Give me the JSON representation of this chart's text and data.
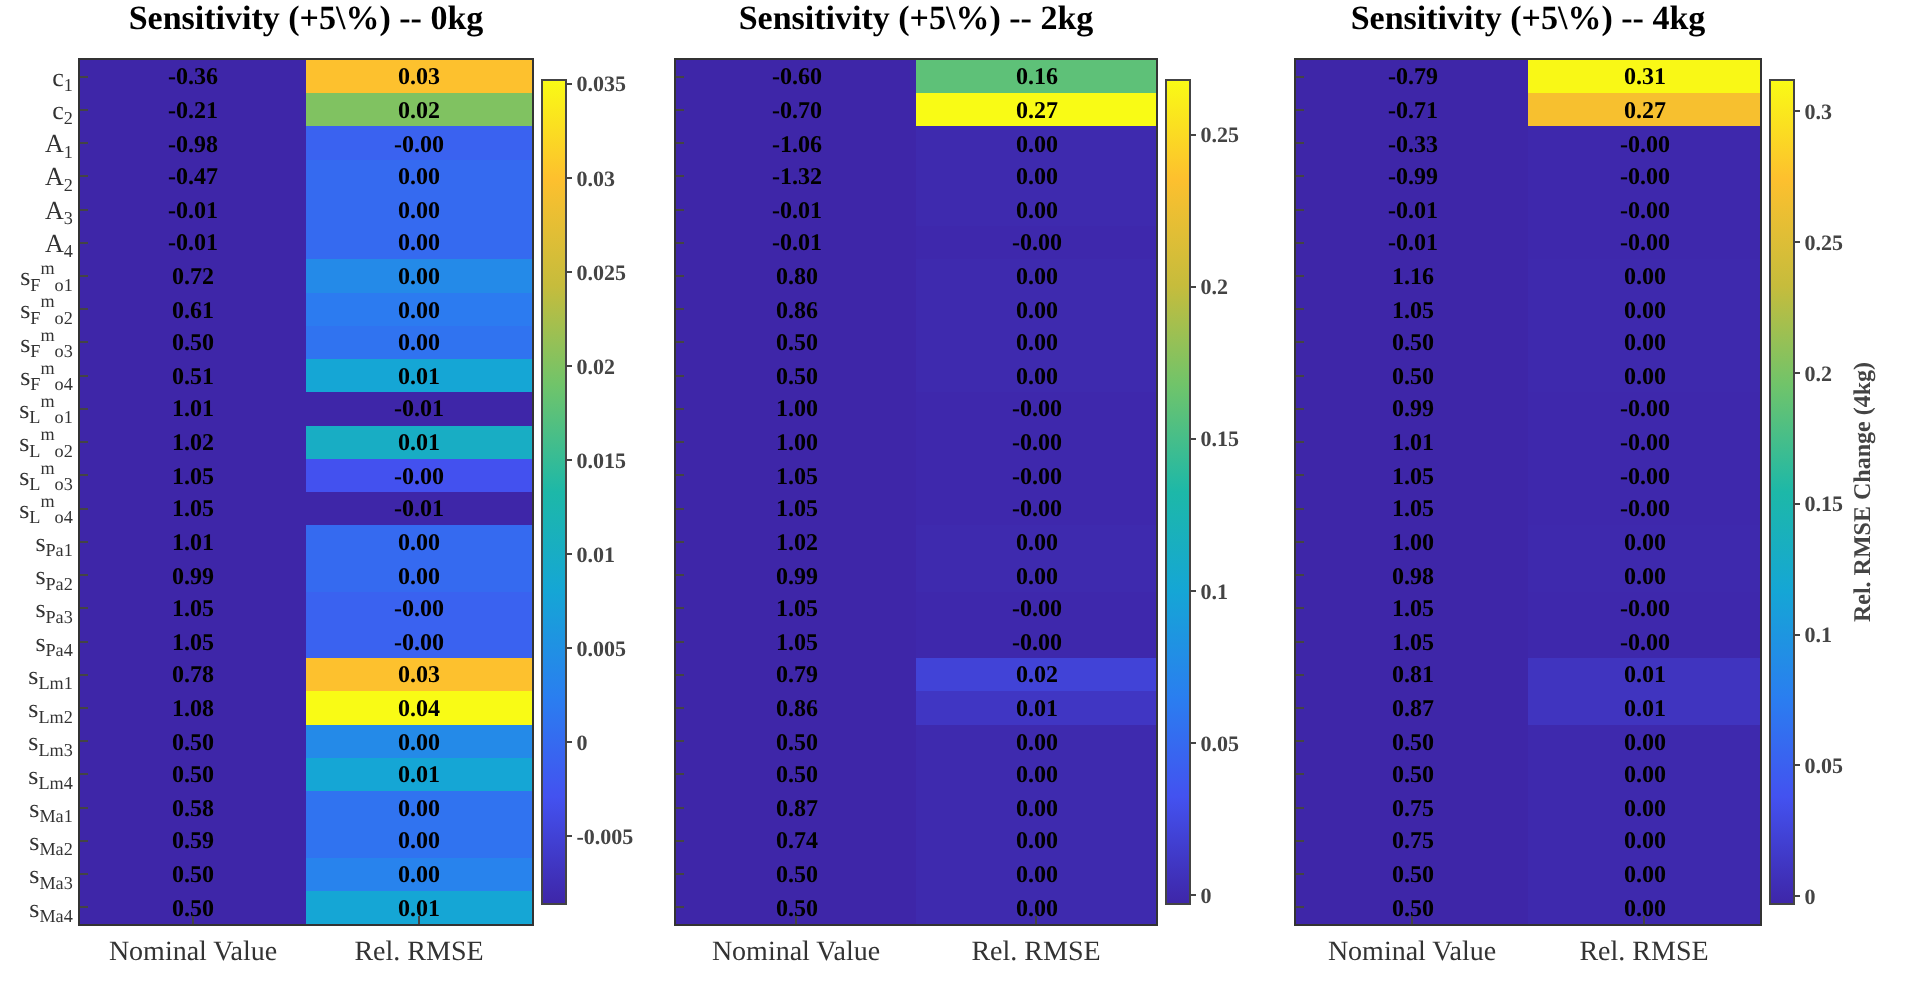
{
  "chart_data": [
    {
      "type": "heatmap",
      "title": "Sensitivity (+5\\%) -- 0kg",
      "categories": [
        "Nominal Value",
        "Rel. RMSE"
      ],
      "y_categories": [
        "c$_{1}$",
        "c$_{2}$",
        "A$_{1}$",
        "A$_{2}$",
        "A$_{3}$",
        "A$_{4}$",
        "s$_{F}$$^{m}$$_{o1}$",
        "s$_{F}$$^{m}$$_{o2}$",
        "s$_{F}$$^{m}$$_{o3}$",
        "s$_{F}$$^{m}$$_{o4}$",
        "s$_{L}$$^{m}$$_{o1}$",
        "s$_{L}$$^{m}$$_{o2}$",
        "s$_{L}$$^{m}$$_{o3}$",
        "s$_{L}$$^{m}$$_{o4}$",
        "s$_{Pa1}$",
        "s$_{Pa2}$",
        "s$_{Pa3}$",
        "s$_{Pa4}$",
        "s$_{Lm1}$",
        "s$_{Lm2}$",
        "s$_{Lm3}$",
        "s$_{Lm4}$",
        "s$_{Ma1}$",
        "s$_{Ma2}$",
        "s$_{Ma3}$",
        "s$_{Ma4}$"
      ],
      "cells": [
        [
          null,
          0.03
        ],
        [
          null,
          0.02
        ],
        [
          null,
          -0.001
        ],
        [
          null,
          0
        ],
        [
          null,
          0
        ],
        [
          null,
          0
        ],
        [
          null,
          0.004
        ],
        [
          null,
          0.002
        ],
        [
          null,
          0.001
        ],
        [
          null,
          0.008
        ],
        [
          null,
          -0.01
        ],
        [
          null,
          0.01
        ],
        [
          null,
          -0.003
        ],
        [
          null,
          -0.01
        ],
        [
          null,
          0.0
        ],
        [
          null,
          0.0
        ],
        [
          null,
          -0.001
        ],
        [
          null,
          -0.001
        ],
        [
          null,
          0.03
        ],
        [
          null,
          0.04
        ],
        [
          null,
          0.004
        ],
        [
          null,
          0.008
        ],
        [
          null,
          0.001
        ],
        [
          null,
          0.001
        ],
        [
          null,
          0.003
        ],
        [
          null,
          0.008
        ]
      ],
      "cell_labels": [
        [
          "-0.36",
          "0.03"
        ],
        [
          "-0.21",
          "0.02"
        ],
        [
          "-0.98",
          "-0.00"
        ],
        [
          "-0.47",
          "0.00"
        ],
        [
          "-0.01",
          "0.00"
        ],
        [
          "-0.01",
          "0.00"
        ],
        [
          "0.72",
          "0.00"
        ],
        [
          "0.61",
          "0.00"
        ],
        [
          "0.50",
          "0.00"
        ],
        [
          "0.51",
          "0.01"
        ],
        [
          "1.01",
          "-0.01"
        ],
        [
          "1.02",
          "0.01"
        ],
        [
          "1.05",
          "-0.00"
        ],
        [
          "1.05",
          "-0.01"
        ],
        [
          "1.01",
          "0.00"
        ],
        [
          "0.99",
          "0.00"
        ],
        [
          "1.05",
          "-0.00"
        ],
        [
          "1.05",
          "-0.00"
        ],
        [
          "0.78",
          "0.03"
        ],
        [
          "1.08",
          "0.04"
        ],
        [
          "0.50",
          "0.00"
        ],
        [
          "0.50",
          "0.01"
        ],
        [
          "0.58",
          "0.00"
        ],
        [
          "0.59",
          "0.00"
        ],
        [
          "0.50",
          "0.00"
        ],
        [
          "0.50",
          "0.01"
        ]
      ],
      "clim": [
        -0.0086,
        0.0352
      ],
      "cticks": [
        -0.005,
        0,
        0.005,
        0.01,
        0.015,
        0.02,
        0.025,
        0.03,
        0.035
      ]
    },
    {
      "type": "heatmap",
      "title": "Sensitivity (+5\\%) -- 2kg",
      "categories": [
        "Nominal Value",
        "Rel. RMSE"
      ],
      "y_categories": [
        null,
        null,
        null,
        null,
        null,
        null,
        null,
        null,
        null,
        null,
        null,
        null,
        null,
        null,
        null,
        null,
        null,
        null,
        null,
        null,
        null,
        null,
        null,
        null,
        null,
        null
      ],
      "cells": [
        [
          null,
          0.16
        ],
        [
          null,
          0.27
        ],
        [
          null,
          0
        ],
        [
          null,
          0
        ],
        [
          null,
          0
        ],
        [
          null,
          -0.001
        ],
        [
          null,
          0
        ],
        [
          null,
          0
        ],
        [
          null,
          0
        ],
        [
          null,
          0
        ],
        [
          null,
          -0.001
        ],
        [
          null,
          -0.001
        ],
        [
          null,
          -0.001
        ],
        [
          null,
          -0.001
        ],
        [
          null,
          0
        ],
        [
          null,
          0
        ],
        [
          null,
          -0.001
        ],
        [
          null,
          -0.001
        ],
        [
          null,
          0.02
        ],
        [
          null,
          0.01
        ],
        [
          null,
          0
        ],
        [
          null,
          0
        ],
        [
          null,
          0
        ],
        [
          null,
          0
        ],
        [
          null,
          0
        ],
        [
          null,
          0
        ]
      ],
      "cell_labels": [
        [
          "-0.60",
          "0.16"
        ],
        [
          "-0.70",
          "0.27"
        ],
        [
          "-1.06",
          "0.00"
        ],
        [
          "-1.32",
          "0.00"
        ],
        [
          "-0.01",
          "0.00"
        ],
        [
          "-0.01",
          "-0.00"
        ],
        [
          "0.80",
          "0.00"
        ],
        [
          "0.86",
          "0.00"
        ],
        [
          "0.50",
          "0.00"
        ],
        [
          "0.50",
          "0.00"
        ],
        [
          "1.00",
          "-0.00"
        ],
        [
          "1.00",
          "-0.00"
        ],
        [
          "1.05",
          "-0.00"
        ],
        [
          "1.05",
          "-0.00"
        ],
        [
          "1.02",
          "0.00"
        ],
        [
          "0.99",
          "0.00"
        ],
        [
          "1.05",
          "-0.00"
        ],
        [
          "1.05",
          "-0.00"
        ],
        [
          "0.79",
          "0.02"
        ],
        [
          "0.86",
          "0.01"
        ],
        [
          "0.50",
          "0.00"
        ],
        [
          "0.50",
          "0.00"
        ],
        [
          "0.87",
          "0.00"
        ],
        [
          "0.74",
          "0.00"
        ],
        [
          "0.50",
          "0.00"
        ],
        [
          "0.50",
          "0.00"
        ]
      ],
      "clim": [
        -0.003,
        0.268
      ],
      "cticks": [
        0,
        0.05,
        0.1,
        0.15,
        0.2,
        0.25
      ]
    },
    {
      "type": "heatmap",
      "title": "Sensitivity (+5\\%) -- 4kg",
      "categories": [
        "Nominal Value",
        "Rel. RMSE"
      ],
      "clabel": "Rel. RMSE Change (4kg)",
      "y_categories": [
        null,
        null,
        null,
        null,
        null,
        null,
        null,
        null,
        null,
        null,
        null,
        null,
        null,
        null,
        null,
        null,
        null,
        null,
        null,
        null,
        null,
        null,
        null,
        null,
        null,
        null
      ],
      "cells": [
        [
          null,
          0.31
        ],
        [
          null,
          0.27
        ],
        [
          null,
          -0.001
        ],
        [
          null,
          -0.001
        ],
        [
          null,
          -0.001
        ],
        [
          null,
          -0.001
        ],
        [
          null,
          0
        ],
        [
          null,
          0
        ],
        [
          null,
          0
        ],
        [
          null,
          0
        ],
        [
          null,
          -0.001
        ],
        [
          null,
          -0.001
        ],
        [
          null,
          -0.001
        ],
        [
          null,
          -0.001
        ],
        [
          null,
          0
        ],
        [
          null,
          0
        ],
        [
          null,
          -0.001
        ],
        [
          null,
          -0.001
        ],
        [
          null,
          0.01
        ],
        [
          null,
          0.01
        ],
        [
          null,
          0
        ],
        [
          null,
          0
        ],
        [
          null,
          0
        ],
        [
          null,
          0
        ],
        [
          null,
          0
        ],
        [
          null,
          0
        ]
      ],
      "cell_labels": [
        [
          "-0.79",
          "0.31"
        ],
        [
          "-0.71",
          "0.27"
        ],
        [
          "-0.33",
          "-0.00"
        ],
        [
          "-0.99",
          "-0.00"
        ],
        [
          "-0.01",
          "-0.00"
        ],
        [
          "-0.01",
          "-0.00"
        ],
        [
          "1.16",
          "0.00"
        ],
        [
          "1.05",
          "0.00"
        ],
        [
          "0.50",
          "0.00"
        ],
        [
          "0.50",
          "0.00"
        ],
        [
          "0.99",
          "-0.00"
        ],
        [
          "1.01",
          "-0.00"
        ],
        [
          "1.05",
          "-0.00"
        ],
        [
          "1.05",
          "-0.00"
        ],
        [
          "1.00",
          "0.00"
        ],
        [
          "0.98",
          "0.00"
        ],
        [
          "1.05",
          "-0.00"
        ],
        [
          "1.05",
          "-0.00"
        ],
        [
          "0.81",
          "0.01"
        ],
        [
          "0.87",
          "0.01"
        ],
        [
          "0.50",
          "0.00"
        ],
        [
          "0.50",
          "0.00"
        ],
        [
          "0.75",
          "0.00"
        ],
        [
          "0.75",
          "0.00"
        ],
        [
          "0.50",
          "0.00"
        ],
        [
          "0.50",
          "0.00"
        ]
      ],
      "clim": [
        -0.003,
        0.312
      ],
      "cticks": [
        0,
        0.05,
        0.1,
        0.15,
        0.2,
        0.25,
        0.3
      ]
    }
  ]
}
